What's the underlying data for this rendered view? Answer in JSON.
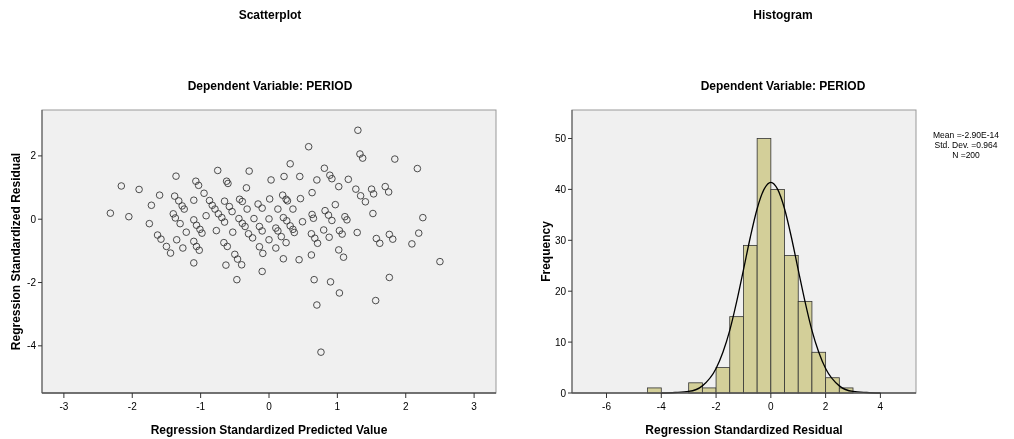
{
  "chart_data": [
    {
      "type": "scatter",
      "title": "Scatterplot",
      "subtitle": "Dependent Variable: PERIOD",
      "xlabel": "Regression Standardized Predicted Value",
      "ylabel": "Regression Standardized Residual",
      "marker": "circle",
      "color": "#3a3a3a",
      "grid": false,
      "x": [
        -2.32,
        -2.16,
        -2.05,
        -1.9,
        -1.72,
        -1.75,
        -1.6,
        -1.63,
        -1.58,
        -1.5,
        -1.44,
        -1.36,
        -1.38,
        -1.32,
        -1.27,
        -1.24,
        -1.4,
        -1.37,
        -1.3,
        -1.35,
        -1.26,
        -1.21,
        -1.1,
        -1.07,
        -1.03,
        -0.95,
        -1.1,
        -1.06,
        -1.01,
        -0.98,
        -1.1,
        -1.06,
        -1.02,
        -1.1,
        -0.92,
        -0.75,
        -0.62,
        -0.6,
        -0.87,
        -0.83,
        -0.79,
        -0.74,
        -0.69,
        -0.65,
        -0.77,
        -0.65,
        -0.58,
        -0.54,
        -0.53,
        -0.66,
        -0.61,
        -0.63,
        -0.5,
        -0.46,
        -0.4,
        -0.47,
        -0.29,
        -0.33,
        -0.43,
        -0.39,
        -0.32,
        -0.44,
        -0.39,
        -0.35,
        -0.3,
        -0.24,
        -0.22,
        -0.16,
        -0.1,
        -0.14,
        -0.1,
        -0.14,
        -0.09,
        -0.1,
        0.01,
        0.03,
        0.0,
        0.0,
        0.1,
        0.13,
        0.2,
        0.25,
        0.27,
        0.22,
        0.21,
        0.26,
        0.1,
        0.13,
        0.18,
        0.25,
        0.21,
        0.31,
        0.35,
        0.31,
        0.35,
        0.37,
        0.45,
        0.46,
        0.44,
        0.49,
        0.58,
        0.63,
        0.63,
        0.65,
        0.7,
        0.62,
        0.67,
        0.71,
        0.62,
        0.66,
        0.7,
        0.76,
        0.81,
        0.89,
        0.92,
        0.82,
        0.87,
        0.92,
        0.8,
        0.88,
        1.02,
        0.97,
        1.03,
        1.07,
        1.02,
        1.09,
        0.9,
        1.03,
        1.11,
        1.14,
        1.16,
        1.29,
        1.27,
        1.34,
        1.41,
        1.3,
        1.33,
        1.37,
        1.5,
        1.53,
        1.52,
        1.57,
        1.62,
        1.56,
        1.7,
        1.75,
        1.76,
        1.81,
        1.76,
        1.84,
        2.09,
        2.17,
        2.19,
        2.25,
        2.5
      ],
      "values": [
        0.19,
        1.05,
        0.08,
        0.94,
        0.44,
        -0.14,
        0.76,
        -0.5,
        -0.63,
        -0.86,
        -1.07,
        1.36,
        0.73,
        0.58,
        0.42,
        0.32,
        0.17,
        0.04,
        -0.14,
        -0.65,
        -0.91,
        -0.41,
        0.6,
        1.2,
        1.07,
        0.82,
        -0.02,
        -0.19,
        -0.32,
        -0.44,
        -0.7,
        -0.86,
        -0.98,
        -1.38,
        0.11,
        1.54,
        1.2,
        1.13,
        0.59,
        0.44,
        0.32,
        0.17,
        0.05,
        -0.09,
        -0.36,
        0.57,
        0.4,
        0.24,
        -0.41,
        -0.74,
        -0.86,
        -1.45,
        -1.11,
        -1.26,
        -1.44,
        -1.91,
        1.52,
        0.99,
        0.63,
        0.56,
        0.32,
        0.02,
        -0.13,
        -0.23,
        -0.46,
        -0.59,
        0.02,
        0.48,
        0.35,
        -0.23,
        -0.37,
        -0.87,
        -1.08,
        -1.65,
        0.64,
        1.24,
        0.01,
        -0.65,
        -0.91,
        0.32,
        0.76,
        0.63,
        0.58,
        1.35,
        0.05,
        -0.05,
        -0.28,
        -0.37,
        -0.55,
        -0.74,
        -1.25,
        1.75,
        0.32,
        -0.21,
        -0.32,
        -0.42,
        1.35,
        0.65,
        -1.28,
        -0.08,
        2.29,
        0.84,
        0.15,
        0.03,
        1.24,
        -0.46,
        -0.6,
        -0.76,
        -1.13,
        -1.91,
        -2.71,
        -4.2,
        1.61,
        1.39,
        1.28,
        0.27,
        0.13,
        -0.04,
        -0.34,
        -0.57,
        1.03,
        0.46,
        -0.36,
        -0.47,
        -0.97,
        -1.2,
        -1.98,
        -2.33,
        0.08,
        -0.02,
        1.26,
        -0.42,
        0.95,
        0.74,
        0.55,
        2.81,
        2.06,
        1.93,
        0.95,
        0.8,
        0.18,
        -0.61,
        -0.76,
        -2.57,
        1.03,
        0.86,
        -0.48,
        -0.63,
        -1.84,
        1.9,
        -0.78,
        1.6,
        -0.44,
        0.05,
        -1.34
      ],
      "xlim": [
        -3.32,
        3.32
      ],
      "ylim": [
        -5.49,
        3.45
      ],
      "xticks": [
        -3,
        -2,
        -1,
        0,
        1,
        2,
        3
      ],
      "yticks": [
        -4,
        -2,
        0,
        2
      ]
    },
    {
      "type": "histogram",
      "title": "Histogram",
      "subtitle": "Dependent Variable: PERIOD",
      "xlabel": "Regression Standardized Residual",
      "ylabel": "Frequency",
      "grid": false,
      "bins": [
        -4.5,
        -4,
        -3.5,
        -3,
        -2.5,
        -2,
        -1.5,
        -1,
        -0.5,
        0,
        0.5,
        1,
        1.5,
        2,
        2.5,
        3
      ],
      "series": [
        {
          "color": "#d3cf99",
          "values": [
            1,
            0,
            0,
            2,
            1,
            5,
            15,
            29,
            50,
            40,
            27,
            18,
            8,
            3,
            1
          ]
        },
        {
          "type": "line",
          "color": "#000000",
          "x": [
            -4,
            -3.5,
            -3,
            -2.5,
            -2,
            -1.75,
            -1.5,
            -1.25,
            -1,
            -0.75,
            -0.5,
            -0.25,
            0,
            0.25,
            0.5,
            0.75,
            1,
            1.25,
            1.5,
            1.75,
            2,
            2.5,
            3,
            3.5,
            4
          ],
          "values": [
            0,
            0.1,
            0.3,
            1.4,
            4.8,
            8,
            12.3,
            17.9,
            24.2,
            30.6,
            36.2,
            40,
            41.4,
            40,
            36.2,
            30.6,
            24.2,
            17.9,
            12.3,
            8,
            4.8,
            1.4,
            0.3,
            0.1,
            0
          ]
        }
      ],
      "xlim": [
        -7.26,
        5.3
      ],
      "ylim": [
        0,
        55.6
      ],
      "xticks": [
        -6,
        -4,
        -2,
        0,
        2,
        4
      ],
      "yticks": [
        0,
        10,
        20,
        30,
        40,
        50
      ],
      "annotations": [
        "Mean =-2.90E-14",
        "Std. Dev. =0.964",
        "N =200"
      ]
    }
  ]
}
